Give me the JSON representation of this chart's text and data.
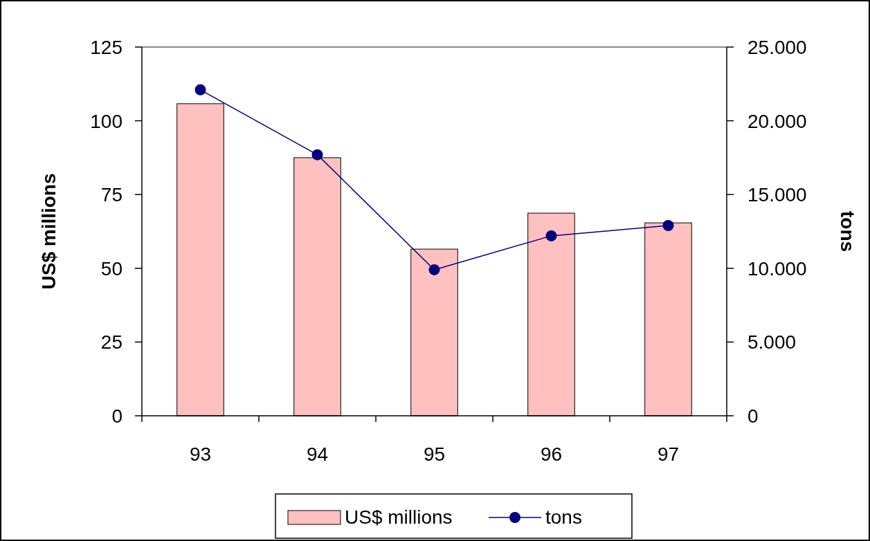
{
  "chart_data": {
    "type": "bar",
    "ylabel": "US$ millions",
    "y2label": "tons",
    "categories": [
      "93",
      "94",
      "95",
      "96",
      "97"
    ],
    "series": [
      {
        "name": "US$ millions",
        "color": "#ffc0c0",
        "values": [
          105.8,
          87.5,
          56.5,
          68.7,
          65.4
        ]
      },
      {
        "name": "tons",
        "type": "line",
        "axis": "y2",
        "color": "#000080",
        "marker": "circle",
        "values": [
          22100,
          17700,
          9900,
          12200,
          12900
        ]
      }
    ],
    "ylim": [
      0,
      125
    ],
    "yticks": [
      0,
      25,
      50,
      75,
      100,
      125
    ],
    "y2lim": [
      0,
      25000
    ],
    "y2ticks": [
      {
        "value": 0,
        "label": "0"
      },
      {
        "value": 5000,
        "label": "5.000"
      },
      {
        "value": 10000,
        "label": "10.000"
      },
      {
        "value": 15000,
        "label": "15.000"
      },
      {
        "value": 20000,
        "label": "20.000"
      },
      {
        "value": 25000,
        "label": "25.000"
      }
    ],
    "grid": false,
    "legend": "bottom"
  }
}
